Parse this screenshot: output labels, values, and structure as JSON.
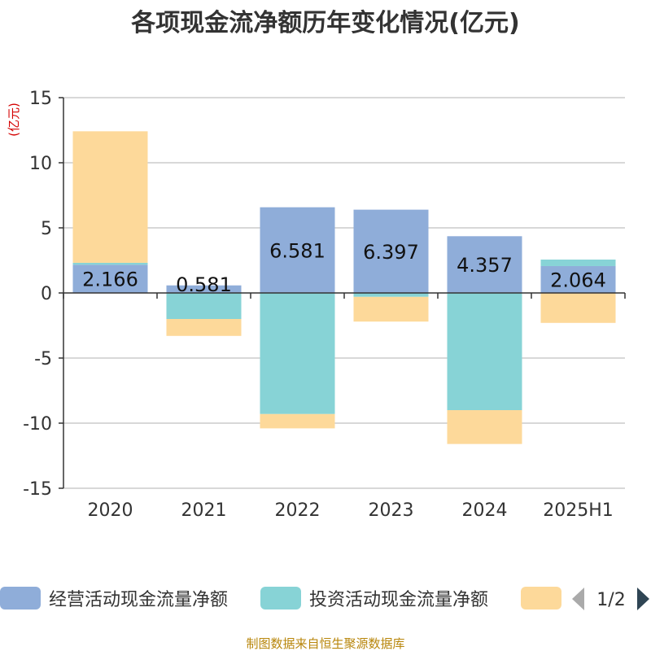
{
  "page": {
    "title": "各项现金流净额历年变化情况(亿元)",
    "unit": "(亿元)",
    "source": "制图数据来自恒生聚源数据库",
    "legend_pager": "1/2"
  },
  "chart_data": {
    "type": "bar",
    "stacked": true,
    "categories": [
      "2020",
      "2021",
      "2022",
      "2023",
      "2024",
      "2025H1"
    ],
    "ylim": [
      -15,
      15
    ],
    "yticks": [
      15,
      10,
      5,
      0,
      -5,
      -10,
      -15
    ],
    "grid": true,
    "legend_position": "bottom",
    "series": [
      {
        "name": "经营活动现金流量净额",
        "color": "#8fadd9",
        "values": [
          2.166,
          0.581,
          6.581,
          6.397,
          4.357,
          2.064
        ],
        "labels": [
          "2.166",
          "0.581",
          "6.581",
          "6.397",
          "4.357",
          "2.064"
        ]
      },
      {
        "name": "投资活动现金流量净额",
        "color": "#87d3d6",
        "values": [
          0.15,
          -2.0,
          -9.3,
          -0.3,
          -9.0,
          0.5
        ]
      },
      {
        "name": "",
        "color": "#fdd99a",
        "values": [
          10.1,
          -1.3,
          -1.1,
          -1.9,
          -2.6,
          -2.3
        ]
      }
    ]
  }
}
